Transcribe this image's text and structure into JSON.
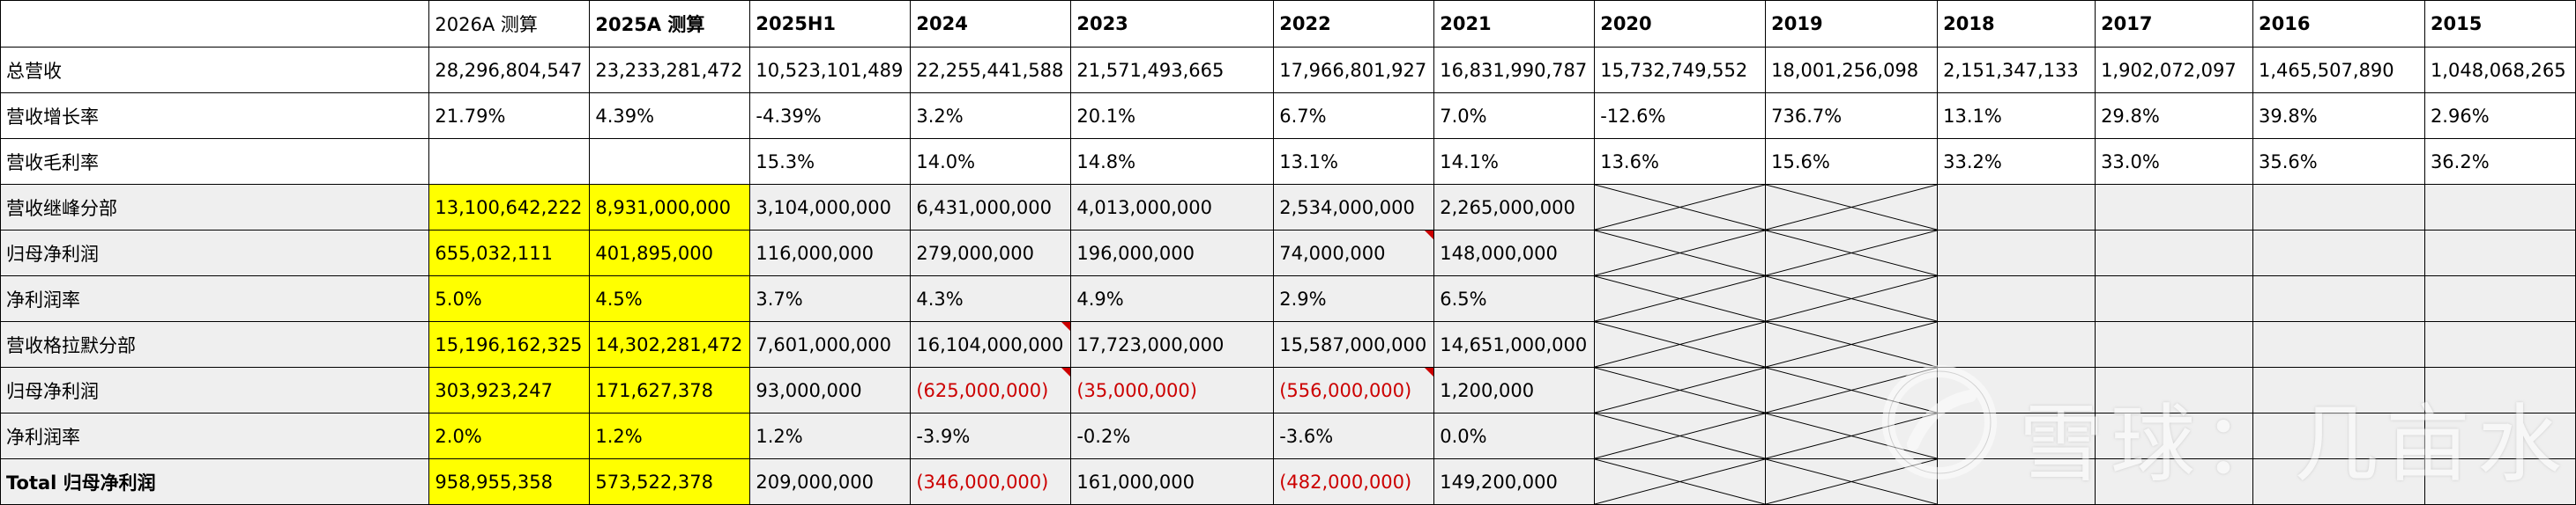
{
  "headers": [
    "",
    "2026A 测算",
    "2025A 测算",
    "2025H1",
    "2024",
    "2023",
    "2022",
    "2021",
    "2020",
    "2019",
    "2018",
    "2017",
    "2016",
    "2015"
  ],
  "rows": [
    {
      "label": "总营收",
      "cells": [
        "28,296,804,547",
        "23,233,281,472",
        "10,523,101,489",
        "22,255,441,588",
        "21,571,493,665",
        "17,966,801,927",
        "16,831,990,787",
        "15,732,749,552",
        "18,001,256,098",
        "2,151,347,133",
        "1,902,072,097",
        "1,465,507,890",
        "1,048,068,265"
      ]
    },
    {
      "label": "营收增长率",
      "cells": [
        "21.79%",
        "4.39%",
        "-4.39%",
        "3.2%",
        "20.1%",
        "6.7%",
        "7.0%",
        "-12.6%",
        "736.7%",
        "13.1%",
        "29.8%",
        "39.8%",
        "2.96%"
      ]
    },
    {
      "label": "营收毛利率",
      "cells": [
        "",
        "",
        "15.3%",
        "14.0%",
        "14.8%",
        "13.1%",
        "14.1%",
        "13.6%",
        "15.6%",
        "33.2%",
        "33.0%",
        "35.6%",
        "36.2%"
      ]
    },
    {
      "label": "营收继峰分部",
      "cells": [
        "13,100,642,222",
        "8,931,000,000",
        "3,104,000,000",
        "6,431,000,000",
        "4,013,000,000",
        "2,534,000,000",
        "2,265,000,000",
        "",
        "",
        "",
        "",
        "",
        ""
      ]
    },
    {
      "label": "归母净利润",
      "cells": [
        "655,032,111",
        "401,895,000",
        "116,000,000",
        "279,000,000",
        "196,000,000",
        "74,000,000",
        "148,000,000",
        "",
        "",
        "",
        "",
        "",
        ""
      ]
    },
    {
      "label": "净利润率",
      "cells": [
        "5.0%",
        "4.5%",
        "3.7%",
        "4.3%",
        "4.9%",
        "2.9%",
        "6.5%",
        "",
        "",
        "",
        "",
        "",
        ""
      ]
    },
    {
      "label": "营收格拉默分部",
      "cells": [
        "15,196,162,325",
        "14,302,281,472",
        "7,601,000,000",
        "16,104,000,000",
        "17,723,000,000",
        "15,587,000,000",
        "14,651,000,000",
        "",
        "",
        "",
        "",
        "",
        ""
      ]
    },
    {
      "label": "归母净利润",
      "cells": [
        "303,923,247",
        "171,627,378",
        "93,000,000",
        "(625,000,000)",
        "(35,000,000)",
        "(556,000,000)",
        "1,200,000",
        "",
        "",
        "",
        "",
        "",
        ""
      ]
    },
    {
      "label": "净利润率",
      "cells": [
        "2.0%",
        "1.2%",
        "1.2%",
        "-3.9%",
        "-0.2%",
        "-3.6%",
        "0.0%",
        "",
        "",
        "",
        "",
        "",
        ""
      ]
    },
    {
      "label": "Total 归母净利润",
      "cells": [
        "958,955,358",
        "573,522,378",
        "209,000,000",
        "(346,000,000)",
        "161,000,000",
        "(482,000,000)",
        "149,200,000",
        "",
        "",
        "",
        "",
        "",
        ""
      ]
    }
  ],
  "colors": {
    "highlight": "#ffff00",
    "negative": "#cc0000",
    "shaded": "#efefef"
  },
  "watermark": {
    "text": "雪球：几亩水田",
    "icon": "snowball-logo-icon"
  }
}
